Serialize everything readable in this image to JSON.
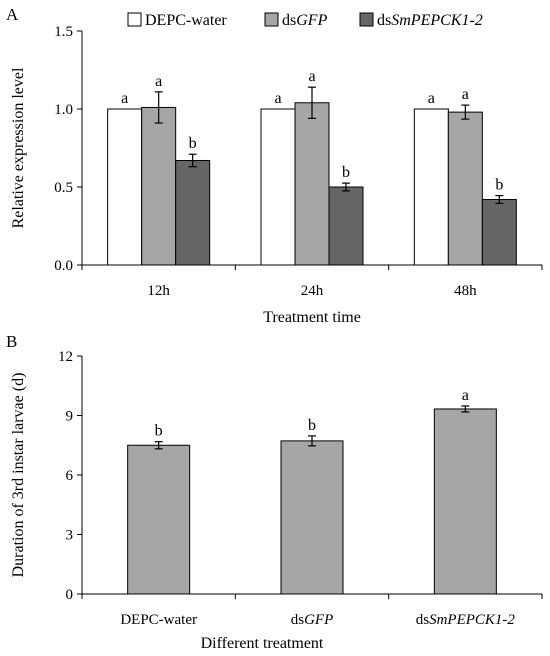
{
  "chart_data": [
    {
      "panel_label": "A",
      "type": "bar",
      "categories": [
        "12h",
        "24h",
        "48h"
      ],
      "series": [
        {
          "name_parts": [
            {
              "t": "DEPC-water",
              "i": false
            }
          ],
          "color": "#ffffff",
          "values": [
            1.0,
            1.0,
            1.0
          ],
          "errors": [
            0,
            0,
            0
          ],
          "letters": [
            "a",
            "a",
            "a"
          ]
        },
        {
          "name_parts": [
            {
              "t": "ds",
              "i": false
            },
            {
              "t": "GFP",
              "i": true
            }
          ],
          "color": "#a6a6a6",
          "values": [
            1.01,
            1.04,
            0.98
          ],
          "errors": [
            0.1,
            0.1,
            0.045
          ],
          "letters": [
            "a",
            "a",
            "a"
          ]
        },
        {
          "name_parts": [
            {
              "t": "ds",
              "i": false
            },
            {
              "t": "SmPEPCK1-2",
              "i": true
            }
          ],
          "color": "#666666",
          "values": [
            0.67,
            0.5,
            0.42
          ],
          "errors": [
            0.04,
            0.025,
            0.025
          ],
          "letters": [
            "b",
            "b",
            "b"
          ]
        }
      ],
      "xlabel": "Treatment time",
      "ylabel": "Relative expression level",
      "ylim": [
        0,
        1.5
      ],
      "yticks": [
        "0.0",
        "0.5",
        "1.0",
        "1.5"
      ],
      "legend": "top"
    },
    {
      "panel_label": "B",
      "type": "bar",
      "categories": [
        [
          {
            "t": "DEPC-water",
            "i": false
          }
        ],
        [
          {
            "t": "ds",
            "i": false
          },
          {
            "t": "GFP",
            "i": true
          }
        ],
        [
          {
            "t": "ds",
            "i": false
          },
          {
            "t": "SmPEPCK1-2",
            "i": true
          }
        ]
      ],
      "color": "#a6a6a6",
      "values": [
        7.5,
        7.72,
        9.33
      ],
      "errors": [
        0.18,
        0.25,
        0.15
      ],
      "letters": [
        "b",
        "b",
        "a"
      ],
      "xlabel": "Different treatment",
      "ylabel": "Duration of 3rd instar larvae (d)",
      "ylim": [
        0,
        12
      ],
      "yticks": [
        "0",
        "3",
        "6",
        "9",
        "12"
      ]
    }
  ]
}
